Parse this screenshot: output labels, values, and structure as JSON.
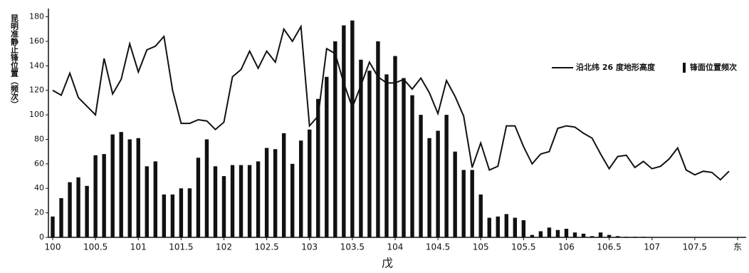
{
  "chart_data": {
    "type": "combo",
    "xlabel": "戊",
    "ylabel": "昆明准静止锋位置（频次）",
    "xlim": [
      99.95,
      108.1
    ],
    "ylim": [
      0,
      185
    ],
    "xticks": [
      100,
      100.5,
      101,
      101.5,
      102,
      102.5,
      103,
      103.5,
      104,
      104.5,
      105,
      105.5,
      106,
      106.5,
      107,
      107.5,
      {
        "value": 108,
        "label": "东"
      }
    ],
    "yticks": [
      0,
      20,
      40,
      60,
      80,
      100,
      120,
      140,
      160,
      180
    ],
    "legend": "top-right",
    "series": [
      {
        "name": "沿北纬 26 度地形高度",
        "type": "line",
        "color": "#111111",
        "x": [
          100.0,
          100.1,
          100.2,
          100.3,
          100.4,
          100.5,
          100.6,
          100.7,
          100.8,
          100.9,
          101.0,
          101.1,
          101.2,
          101.3,
          101.4,
          101.5,
          101.6,
          101.7,
          101.8,
          101.9,
          102.0,
          102.1,
          102.2,
          102.3,
          102.4,
          102.5,
          102.6,
          102.7,
          102.8,
          102.9,
          103.0,
          103.1,
          103.2,
          103.3,
          103.4,
          103.5,
          103.6,
          103.7,
          103.8,
          103.9,
          104.0,
          104.1,
          104.2,
          104.3,
          104.4,
          104.5,
          104.6,
          104.7,
          104.8,
          104.9,
          105.0,
          105.1,
          105.2,
          105.3,
          105.4,
          105.5,
          105.6,
          105.7,
          105.8,
          105.9,
          106.0,
          106.1,
          106.2,
          106.3,
          106.4,
          106.5,
          106.6,
          106.7,
          106.8,
          106.9,
          107.0,
          107.1,
          107.2,
          107.3,
          107.4,
          107.5,
          107.6,
          107.7,
          107.8,
          107.9
        ],
        "values": [
          120,
          116,
          134,
          114,
          107,
          100,
          146,
          117,
          129,
          158,
          135,
          153,
          156,
          164,
          120,
          93,
          93,
          96,
          95,
          88,
          94,
          131,
          137,
          152,
          138,
          152,
          143,
          170,
          160,
          172,
          91,
          99,
          154,
          150,
          126,
          106,
          124,
          143,
          131,
          126,
          126,
          129,
          121,
          130,
          118,
          101,
          128,
          115,
          99,
          57,
          77,
          55,
          58,
          91,
          91,
          74,
          60,
          68,
          70,
          89,
          91,
          90,
          85,
          81,
          68,
          56,
          66,
          67,
          57,
          62,
          56,
          58,
          64,
          73,
          55,
          51,
          54,
          53,
          47,
          54
        ]
      },
      {
        "name": "锋面位置频次",
        "type": "bar",
        "color": "#111111",
        "x": [
          100.0,
          100.1,
          100.2,
          100.3,
          100.4,
          100.5,
          100.6,
          100.7,
          100.8,
          100.9,
          101.0,
          101.1,
          101.2,
          101.3,
          101.4,
          101.5,
          101.6,
          101.7,
          101.8,
          101.9,
          102.0,
          102.1,
          102.2,
          102.3,
          102.4,
          102.5,
          102.6,
          102.7,
          102.8,
          102.9,
          103.0,
          103.1,
          103.2,
          103.3,
          103.4,
          103.5,
          103.6,
          103.7,
          103.8,
          103.9,
          104.0,
          104.1,
          104.2,
          104.3,
          104.4,
          104.5,
          104.6,
          104.7,
          104.8,
          104.9,
          105.0,
          105.1,
          105.2,
          105.3,
          105.4,
          105.5,
          105.6,
          105.7,
          105.8,
          105.9,
          106.0,
          106.1,
          106.2,
          106.3,
          106.4,
          106.5,
          106.6,
          106.7,
          106.8,
          106.9
        ],
        "values": [
          17,
          32,
          45,
          49,
          42,
          67,
          68,
          84,
          86,
          80,
          81,
          58,
          62,
          35,
          35,
          40,
          40,
          65,
          80,
          58,
          50,
          59,
          59,
          59,
          62,
          73,
          72,
          85,
          60,
          79,
          88,
          113,
          131,
          160,
          173,
          177,
          145,
          136,
          160,
          133,
          148,
          130,
          116,
          100,
          81,
          87,
          100,
          70,
          55,
          55,
          35,
          16,
          17,
          19,
          16,
          14,
          2,
          5,
          8,
          6,
          7,
          4,
          3,
          1,
          4,
          2,
          1,
          0.5,
          0.5,
          0.5
        ]
      }
    ]
  }
}
